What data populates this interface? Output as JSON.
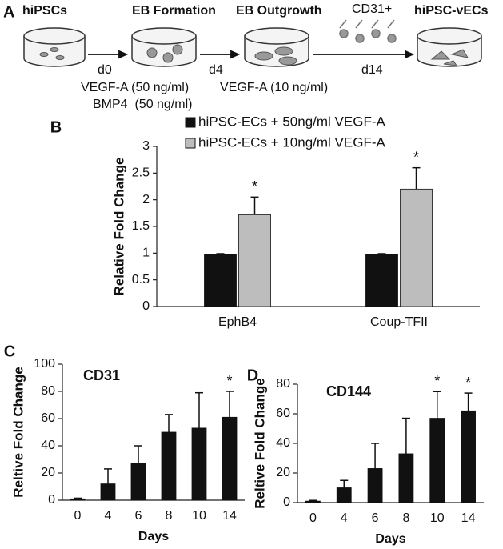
{
  "schematic": {
    "panel": "A",
    "stages": [
      "hiPSCs",
      "EB Formation",
      "EB Outgrowth",
      "hiPSC-vECs"
    ],
    "marker": "CD31+",
    "days": [
      "d0",
      "d4",
      "d14"
    ],
    "conditions": [
      "VEGF-A (50 ng/ml)",
      "BMP4  (50 ng/ml)",
      "VEGF-A (10 ng/ml)"
    ]
  },
  "chart_data": [
    {
      "type": "bar",
      "panel": "B",
      "y_label": "Relative Fold Change",
      "categories": [
        "EphB4",
        "Coup-TFII"
      ],
      "series": [
        {
          "name": "hiPSC-ECs + 50ng/ml VEGF-A",
          "color": "#111111",
          "values": [
            0.98,
            0.98
          ],
          "errors": [
            0.01,
            0.01
          ],
          "markers": [
            null,
            null
          ]
        },
        {
          "name": "hiPSC-ECs + 10ng/ml VEGF-A",
          "color": "#bdbdbd",
          "values": [
            1.72,
            2.2
          ],
          "errors": [
            0.33,
            0.4
          ],
          "markers": [
            "*",
            "*"
          ]
        }
      ],
      "ylim": [
        0,
        3
      ],
      "yticks": [
        0,
        0.5,
        1,
        1.5,
        2,
        2.5,
        3
      ],
      "legend": "upper left"
    },
    {
      "type": "bar",
      "panel": "C",
      "title": "CD31",
      "x_label": "Days",
      "y_label": "Reltive Fold Change",
      "categories": [
        "0",
        "4",
        "6",
        "8",
        "10",
        "14"
      ],
      "color": "#111111",
      "values": [
        1,
        12,
        27,
        50,
        53,
        61
      ],
      "errors": [
        0.5,
        11,
        13,
        13,
        26,
        19
      ],
      "markers": [
        null,
        null,
        null,
        null,
        null,
        "*"
      ],
      "ylim": [
        0,
        100
      ],
      "yticks": [
        0,
        20,
        40,
        60,
        80,
        100
      ]
    },
    {
      "type": "bar",
      "panel": "D",
      "title": "CD144",
      "x_label": "Days",
      "y_label": "Reltive Fold Change",
      "categories": [
        "0",
        "4",
        "6",
        "8",
        "10",
        "14"
      ],
      "color": "#111111",
      "values": [
        1,
        10,
        23,
        33,
        57,
        62
      ],
      "errors": [
        0.5,
        5,
        17,
        24,
        18,
        12
      ],
      "markers": [
        null,
        null,
        null,
        null,
        "*",
        "*"
      ],
      "ylim": [
        0,
        80
      ],
      "yticks": [
        0,
        20,
        40,
        60,
        80
      ]
    }
  ]
}
